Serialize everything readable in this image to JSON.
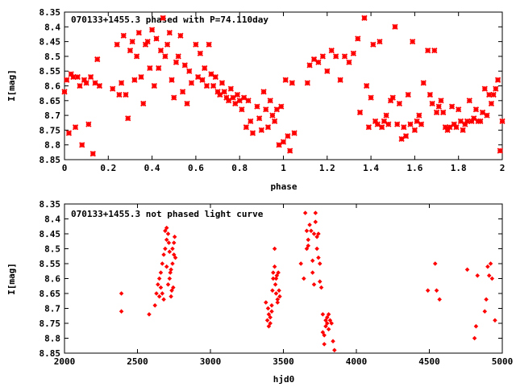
{
  "colors": {
    "points": "#ff0000",
    "axes": "#000000",
    "background": "#ffffff"
  },
  "chart_data": [
    {
      "type": "scatter",
      "title": "070133+1455.3 phased with P=74.110day",
      "xlabel": "phase",
      "ylabel": "I[mag]",
      "xlim": [
        0,
        2
      ],
      "ylim": [
        8.35,
        8.85
      ],
      "y_inverted": true,
      "marker": "star",
      "xticks": [
        "0",
        "0.2",
        "0.4",
        "0.6",
        "0.8",
        "1",
        "1.2",
        "1.4",
        "1.6",
        "1.8",
        "2"
      ],
      "yticks": [
        "8.35",
        "8.4",
        "8.45",
        "8.5",
        "8.55",
        "8.6",
        "8.65",
        "8.7",
        "8.75",
        "8.8",
        "8.85"
      ],
      "points": [
        [
          0.0,
          8.62
        ],
        [
          0.01,
          8.58
        ],
        [
          0.02,
          8.76
        ],
        [
          0.03,
          8.56
        ],
        [
          0.04,
          8.57
        ],
        [
          0.05,
          8.74
        ],
        [
          0.06,
          8.57
        ],
        [
          0.07,
          8.6
        ],
        [
          0.08,
          8.8
        ],
        [
          0.09,
          8.58
        ],
        [
          0.1,
          8.59
        ],
        [
          0.11,
          8.73
        ],
        [
          0.12,
          8.57
        ],
        [
          0.13,
          8.83
        ],
        [
          0.14,
          8.59
        ],
        [
          0.15,
          8.51
        ],
        [
          0.16,
          8.6
        ],
        [
          0.22,
          8.61
        ],
        [
          0.24,
          8.46
        ],
        [
          0.25,
          8.63
        ],
        [
          0.26,
          8.59
        ],
        [
          0.27,
          8.43
        ],
        [
          0.28,
          8.63
        ],
        [
          0.29,
          8.71
        ],
        [
          0.3,
          8.48
        ],
        [
          0.31,
          8.45
        ],
        [
          0.32,
          8.58
        ],
        [
          0.33,
          8.5
        ],
        [
          0.34,
          8.42
        ],
        [
          0.35,
          8.57
        ],
        [
          0.36,
          8.66
        ],
        [
          0.37,
          8.46
        ],
        [
          0.38,
          8.45
        ],
        [
          0.39,
          8.54
        ],
        [
          0.4,
          8.41
        ],
        [
          0.41,
          8.6
        ],
        [
          0.42,
          8.44
        ],
        [
          0.43,
          8.54
        ],
        [
          0.44,
          8.48
        ],
        [
          0.45,
          8.37
        ],
        [
          0.46,
          8.5
        ],
        [
          0.47,
          8.46
        ],
        [
          0.48,
          8.42
        ],
        [
          0.49,
          8.58
        ],
        [
          0.5,
          8.64
        ],
        [
          0.51,
          8.52
        ],
        [
          0.52,
          8.5
        ],
        [
          0.53,
          8.43
        ],
        [
          0.54,
          8.62
        ],
        [
          0.55,
          8.53
        ],
        [
          0.56,
          8.66
        ],
        [
          0.57,
          8.55
        ],
        [
          0.58,
          8.59
        ],
        [
          0.6,
          8.46
        ],
        [
          0.61,
          8.57
        ],
        [
          0.62,
          8.49
        ],
        [
          0.63,
          8.58
        ],
        [
          0.64,
          8.54
        ],
        [
          0.65,
          8.6
        ],
        [
          0.66,
          8.46
        ],
        [
          0.67,
          8.56
        ],
        [
          0.68,
          8.6
        ],
        [
          0.69,
          8.57
        ],
        [
          0.7,
          8.62
        ],
        [
          0.71,
          8.63
        ],
        [
          0.72,
          8.59
        ],
        [
          0.73,
          8.62
        ],
        [
          0.74,
          8.64
        ],
        [
          0.75,
          8.65
        ],
        [
          0.76,
          8.61
        ],
        [
          0.77,
          8.64
        ],
        [
          0.78,
          8.66
        ],
        [
          0.79,
          8.63
        ],
        [
          0.8,
          8.65
        ],
        [
          0.81,
          8.68
        ],
        [
          0.82,
          8.64
        ],
        [
          0.83,
          8.74
        ],
        [
          0.84,
          8.65
        ],
        [
          0.85,
          8.72
        ],
        [
          0.86,
          8.76
        ],
        [
          0.88,
          8.67
        ],
        [
          0.89,
          8.71
        ],
        [
          0.9,
          8.75
        ],
        [
          0.91,
          8.62
        ],
        [
          0.92,
          8.68
        ],
        [
          0.93,
          8.74
        ],
        [
          0.94,
          8.65
        ],
        [
          0.95,
          8.7
        ],
        [
          0.96,
          8.72
        ],
        [
          0.97,
          8.68
        ],
        [
          0.98,
          8.8
        ],
        [
          0.99,
          8.67
        ],
        [
          1.0,
          8.79
        ],
        [
          1.01,
          8.58
        ],
        [
          1.02,
          8.77
        ],
        [
          1.03,
          8.82
        ],
        [
          1.04,
          8.59
        ],
        [
          1.05,
          8.76
        ],
        [
          1.11,
          8.59
        ],
        [
          1.12,
          8.53
        ],
        [
          1.14,
          8.51
        ],
        [
          1.16,
          8.52
        ],
        [
          1.18,
          8.5
        ],
        [
          1.2,
          8.55
        ],
        [
          1.22,
          8.48
        ],
        [
          1.24,
          8.5
        ],
        [
          1.26,
          8.58
        ],
        [
          1.28,
          8.5
        ],
        [
          1.3,
          8.52
        ],
        [
          1.32,
          8.49
        ],
        [
          1.34,
          8.44
        ],
        [
          1.35,
          8.69
        ],
        [
          1.37,
          8.37
        ],
        [
          1.38,
          8.6
        ],
        [
          1.39,
          8.74
        ],
        [
          1.4,
          8.64
        ],
        [
          1.41,
          8.46
        ],
        [
          1.42,
          8.72
        ],
        [
          1.43,
          8.73
        ],
        [
          1.44,
          8.45
        ],
        [
          1.45,
          8.74
        ],
        [
          1.46,
          8.72
        ],
        [
          1.47,
          8.7
        ],
        [
          1.48,
          8.73
        ],
        [
          1.49,
          8.65
        ],
        [
          1.5,
          8.64
        ],
        [
          1.51,
          8.4
        ],
        [
          1.52,
          8.73
        ],
        [
          1.53,
          8.66
        ],
        [
          1.54,
          8.78
        ],
        [
          1.55,
          8.74
        ],
        [
          1.56,
          8.77
        ],
        [
          1.57,
          8.63
        ],
        [
          1.58,
          8.73
        ],
        [
          1.59,
          8.45
        ],
        [
          1.6,
          8.75
        ],
        [
          1.61,
          8.72
        ],
        [
          1.62,
          8.7
        ],
        [
          1.63,
          8.73
        ],
        [
          1.64,
          8.59
        ],
        [
          1.66,
          8.48
        ],
        [
          1.67,
          8.63
        ],
        [
          1.68,
          8.66
        ],
        [
          1.69,
          8.48
        ],
        [
          1.7,
          8.69
        ],
        [
          1.71,
          8.67
        ],
        [
          1.72,
          8.65
        ],
        [
          1.73,
          8.69
        ],
        [
          1.74,
          8.74
        ],
        [
          1.75,
          8.75
        ],
        [
          1.76,
          8.74
        ],
        [
          1.77,
          8.67
        ],
        [
          1.78,
          8.73
        ],
        [
          1.79,
          8.74
        ],
        [
          1.8,
          8.68
        ],
        [
          1.81,
          8.72
        ],
        [
          1.82,
          8.75
        ],
        [
          1.83,
          8.73
        ],
        [
          1.84,
          8.72
        ],
        [
          1.85,
          8.65
        ],
        [
          1.86,
          8.72
        ],
        [
          1.87,
          8.71
        ],
        [
          1.88,
          8.68
        ],
        [
          1.89,
          8.72
        ],
        [
          1.9,
          8.72
        ],
        [
          1.91,
          8.69
        ],
        [
          1.92,
          8.61
        ],
        [
          1.93,
          8.7
        ],
        [
          1.94,
          8.63
        ],
        [
          1.95,
          8.66
        ],
        [
          1.96,
          8.63
        ],
        [
          1.97,
          8.61
        ],
        [
          1.98,
          8.58
        ],
        [
          1.99,
          8.82
        ],
        [
          2.0,
          8.72
        ]
      ]
    },
    {
      "type": "scatter",
      "title": "070133+1455.3 not phased light curve",
      "xlabel": "hjd0",
      "ylabel": "I[mag]",
      "xlim": [
        2000,
        5000
      ],
      "ylim": [
        8.35,
        8.85
      ],
      "y_inverted": true,
      "marker": "diamond",
      "xticks": [
        "2000",
        "2500",
        "3000",
        "3500",
        "4000",
        "4500",
        "5000"
      ],
      "yticks": [
        "8.35",
        "8.4",
        "8.45",
        "8.5",
        "8.55",
        "8.6",
        "8.65",
        "8.7",
        "8.75",
        "8.8",
        "8.85"
      ],
      "points": [
        [
          2390,
          8.65
        ],
        [
          2390,
          8.71
        ],
        [
          2580,
          8.72
        ],
        [
          2620,
          8.69
        ],
        [
          2630,
          8.65
        ],
        [
          2640,
          8.62
        ],
        [
          2650,
          8.6
        ],
        [
          2650,
          8.66
        ],
        [
          2660,
          8.63
        ],
        [
          2660,
          8.58
        ],
        [
          2670,
          8.55
        ],
        [
          2670,
          8.65
        ],
        [
          2680,
          8.52
        ],
        [
          2680,
          8.67
        ],
        [
          2690,
          8.5
        ],
        [
          2690,
          8.44
        ],
        [
          2700,
          8.43
        ],
        [
          2700,
          8.47
        ],
        [
          2700,
          8.56
        ],
        [
          2710,
          8.62
        ],
        [
          2710,
          8.45
        ],
        [
          2715,
          8.48
        ],
        [
          2720,
          8.6
        ],
        [
          2720,
          8.51
        ],
        [
          2725,
          8.58
        ],
        [
          2730,
          8.66
        ],
        [
          2730,
          8.57
        ],
        [
          2735,
          8.64
        ],
        [
          2740,
          8.5
        ],
        [
          2740,
          8.55
        ],
        [
          2745,
          8.63
        ],
        [
          2750,
          8.52
        ],
        [
          2750,
          8.48
        ],
        [
          2755,
          8.46
        ],
        [
          2760,
          8.53
        ],
        [
          3380,
          8.68
        ],
        [
          3390,
          8.74
        ],
        [
          3395,
          8.7
        ],
        [
          3400,
          8.72
        ],
        [
          3400,
          8.76
        ],
        [
          3410,
          8.75
        ],
        [
          3410,
          8.73
        ],
        [
          3420,
          8.71
        ],
        [
          3420,
          8.69
        ],
        [
          3425,
          8.64
        ],
        [
          3430,
          8.6
        ],
        [
          3430,
          8.58
        ],
        [
          3440,
          8.5
        ],
        [
          3440,
          8.56
        ],
        [
          3445,
          8.62
        ],
        [
          3450,
          8.6
        ],
        [
          3450,
          8.65
        ],
        [
          3455,
          8.59
        ],
        [
          3460,
          8.67
        ],
        [
          3460,
          8.68
        ],
        [
          3465,
          8.58
        ],
        [
          3470,
          8.64
        ],
        [
          3475,
          8.66
        ],
        [
          3620,
          8.55
        ],
        [
          3640,
          8.6
        ],
        [
          3650,
          8.38
        ],
        [
          3660,
          8.44
        ],
        [
          3660,
          8.5
        ],
        [
          3670,
          8.49
        ],
        [
          3670,
          8.47
        ],
        [
          3680,
          8.42
        ],
        [
          3690,
          8.44
        ],
        [
          3700,
          8.58
        ],
        [
          3700,
          8.54
        ],
        [
          3710,
          8.62
        ],
        [
          3710,
          8.45
        ],
        [
          3720,
          8.38
        ],
        [
          3720,
          8.41
        ],
        [
          3730,
          8.46
        ],
        [
          3730,
          8.5
        ],
        [
          3740,
          8.45
        ],
        [
          3740,
          8.53
        ],
        [
          3750,
          8.55
        ],
        [
          3750,
          8.61
        ],
        [
          3760,
          8.63
        ],
        [
          3770,
          8.72
        ],
        [
          3770,
          8.78
        ],
        [
          3780,
          8.82
        ],
        [
          3780,
          8.79
        ],
        [
          3790,
          8.74
        ],
        [
          3790,
          8.76
        ],
        [
          3800,
          8.73
        ],
        [
          3800,
          8.75
        ],
        [
          3810,
          8.77
        ],
        [
          3810,
          8.72
        ],
        [
          3820,
          8.74
        ],
        [
          3830,
          8.75
        ],
        [
          3840,
          8.81
        ],
        [
          3850,
          8.84
        ],
        [
          4490,
          8.64
        ],
        [
          4540,
          8.55
        ],
        [
          4550,
          8.64
        ],
        [
          4570,
          8.67
        ],
        [
          4760,
          8.57
        ],
        [
          4810,
          8.8
        ],
        [
          4820,
          8.76
        ],
        [
          4830,
          8.59
        ],
        [
          4880,
          8.71
        ],
        [
          4890,
          8.67
        ],
        [
          4900,
          8.56
        ],
        [
          4910,
          8.59
        ],
        [
          4920,
          8.55
        ],
        [
          4930,
          8.6
        ],
        [
          4950,
          8.74
        ]
      ]
    }
  ]
}
